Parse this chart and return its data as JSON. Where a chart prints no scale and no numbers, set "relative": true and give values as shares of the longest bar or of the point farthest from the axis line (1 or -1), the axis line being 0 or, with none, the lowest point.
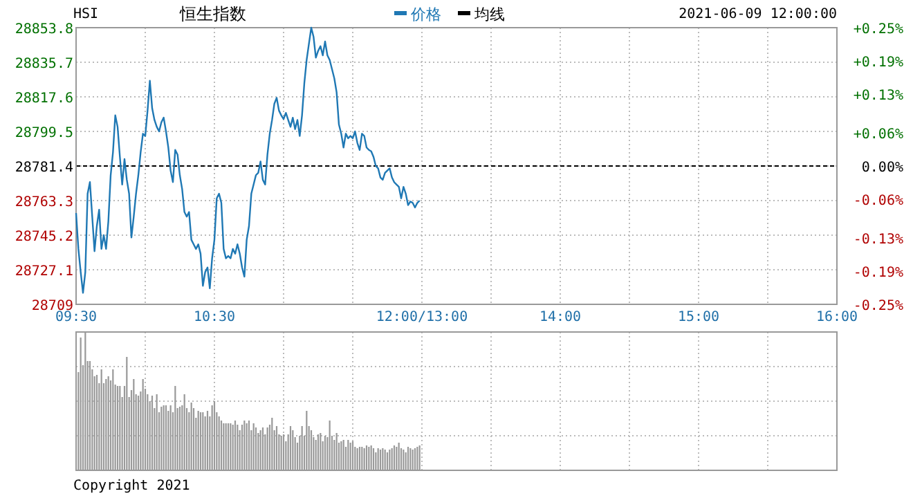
{
  "chart_data": [
    {
      "type": "line",
      "title": "HSI",
      "subtitle": "恒生指数",
      "annotations": [
        "2021-06-09 12:00:00"
      ],
      "categories": [
        "09:30",
        null,
        null,
        null,
        null,
        null,
        null,
        null,
        null,
        null,
        null,
        null,
        null,
        null,
        null,
        null,
        null,
        null,
        null,
        null,
        null,
        null,
        null,
        null,
        null,
        null,
        null,
        null,
        null,
        null,
        null,
        null,
        null,
        null,
        null,
        null,
        null,
        null,
        null,
        null,
        null,
        null,
        null,
        null,
        null,
        null,
        null,
        null,
        null,
        null,
        null,
        null,
        null,
        null,
        null,
        null,
        null,
        null,
        null,
        null,
        "10:30",
        null,
        null,
        null,
        null,
        null,
        null,
        null,
        null,
        null,
        null,
        null,
        null,
        null,
        null,
        null,
        null,
        null,
        null,
        null,
        null,
        null,
        null,
        null,
        null,
        null,
        null,
        null,
        null,
        null,
        null,
        null,
        null,
        null,
        null,
        null,
        null,
        null,
        null,
        null,
        null,
        null,
        null,
        null,
        null,
        null,
        null,
        null,
        null,
        null,
        null,
        null,
        null,
        null,
        null,
        null,
        null,
        null,
        null,
        null,
        null,
        null,
        null,
        null,
        null,
        null,
        null,
        null,
        null,
        null,
        null,
        null,
        null,
        null,
        null,
        null,
        null,
        null,
        null,
        null,
        null,
        null,
        null,
        null,
        null,
        null,
        null,
        null,
        null,
        null,
        "12:00/13:00",
        null,
        null,
        null,
        null,
        null,
        null,
        null,
        null,
        null,
        null,
        null,
        null,
        null,
        null,
        null,
        null,
        null,
        null,
        null,
        null,
        null,
        null,
        null,
        null,
        null,
        null,
        null,
        null,
        null,
        null,
        null,
        null,
        null,
        null,
        null,
        null,
        null,
        null,
        null,
        null,
        null,
        null,
        null,
        null,
        null,
        null,
        null,
        null,
        null,
        null,
        null,
        null,
        null,
        null,
        null,
        null,
        null,
        null,
        null,
        "14:00",
        null,
        null,
        null,
        null,
        null,
        null,
        null,
        null,
        null,
        null,
        null,
        null,
        null,
        null,
        null,
        null,
        null,
        null,
        null,
        null,
        null,
        null,
        null,
        null,
        null,
        null,
        null,
        null,
        null,
        null,
        null,
        null,
        null,
        null,
        null,
        null,
        null,
        null,
        null,
        null,
        null,
        null,
        null,
        null,
        null,
        null,
        null,
        null,
        null,
        null,
        null,
        null,
        null,
        null,
        null,
        null,
        null,
        null,
        null,
        "15:00",
        null,
        null,
        null,
        null,
        null,
        null,
        null,
        null,
        null,
        null,
        null,
        null,
        null,
        null,
        null,
        null,
        null,
        null,
        null,
        null,
        null,
        null,
        null,
        null,
        null,
        null,
        null,
        null,
        null,
        null,
        null,
        null,
        null,
        null,
        null,
        null,
        null,
        null,
        null,
        null,
        null,
        null,
        null,
        null,
        null,
        null,
        null,
        null,
        null,
        null,
        null,
        null,
        null,
        null,
        null,
        null,
        null,
        null,
        null,
        "16:00"
      ],
      "ylim": [
        28709.0,
        28853.8
      ],
      "yticks": [
        28709.0,
        28727.1,
        28745.2,
        28763.3,
        28781.4,
        28799.5,
        28817.6,
        28835.7,
        28853.8
      ],
      "y2lim": [
        -0.25,
        0.25
      ],
      "y2ticks": [
        {
          "value": -0.25,
          "label": "-0.25%"
        },
        {
          "value": -0.19,
          "label": "-0.19%"
        },
        {
          "value": -0.13,
          "label": "-0.13%"
        },
        {
          "value": -0.06,
          "label": "-0.06%"
        },
        {
          "value": 0,
          "label": "0.00%"
        },
        {
          "value": 0.06,
          "label": "+0.06%"
        },
        {
          "value": 0.13,
          "label": "+0.13%"
        },
        {
          "value": 0.19,
          "label": "+0.19%"
        },
        {
          "value": 0.25,
          "label": "+0.25%"
        }
      ],
      "ref_lines": [
        {
          "axis": "y",
          "value": 28781.4,
          "color": "#000000",
          "line_style": "dashed"
        }
      ],
      "grid": true,
      "legend": "top",
      "marker": "none",
      "series": [
        {
          "name": "价格",
          "color": "#1f78b4",
          "values": [
            28756.8,
            28738.0,
            28725.9,
            28715.0,
            28725.9,
            28766.9,
            28773.0,
            28754.9,
            28736.8,
            28750.0,
            28758.5,
            28738.0,
            28745.2,
            28738.0,
            28752.4,
            28776.6,
            28788.6,
            28807.9,
            28801.9,
            28786.2,
            28771.7,
            28785.0,
            28774.2,
            28766.9,
            28744.0,
            28754.9,
            28766.9,
            28776.6,
            28788.6,
            28798.3,
            28797.1,
            28810.4,
            28826.0,
            28811.6,
            28805.5,
            28801.9,
            28799.5,
            28804.3,
            28806.7,
            28799.5,
            28791.1,
            28779.0,
            28773.0,
            28789.8,
            28787.4,
            28776.6,
            28769.3,
            28757.3,
            28754.9,
            28757.3,
            28742.8,
            28740.4,
            28738.0,
            28740.4,
            28735.5,
            28718.7,
            28725.9,
            28728.3,
            28717.4,
            28733.1,
            28742.8,
            28764.5,
            28766.9,
            28762.1,
            28738.0,
            28733.1,
            28734.3,
            28733.1,
            28738.0,
            28735.5,
            28740.4,
            28735.5,
            28728.3,
            28723.5,
            28742.8,
            28750.0,
            28766.9,
            28771.7,
            28776.6,
            28777.8,
            28783.8,
            28774.2,
            28771.7,
            28787.4,
            28798.3,
            28805.5,
            28814.0,
            28817.1,
            28810.4,
            28807.9,
            28806.0,
            28809.2,
            28805.5,
            28801.9,
            28806.7,
            28800.7,
            28805.5,
            28797.1,
            28807.9,
            28824.8,
            28836.9,
            28845.4,
            28853.8,
            28849.0,
            28838.1,
            28841.7,
            28844.1,
            28839.3,
            28846.6,
            28839.3,
            28836.9,
            28832.1,
            28827.3,
            28820.0,
            28803.1,
            28798.3,
            28791.1,
            28798.3,
            28795.9,
            28797.1,
            28795.9,
            28799.5,
            28793.5,
            28789.8,
            28798.3,
            28797.1,
            28791.1,
            28789.8,
            28789.1,
            28786.2,
            28781.4,
            28780.2,
            28775.4,
            28774.2,
            28777.8,
            28779.0,
            28780.2,
            28775.4,
            28772.9,
            28771.7,
            28770.5,
            28764.5,
            28770.5,
            28766.9,
            28760.9,
            28762.8,
            28762.1,
            28759.7,
            28762.1,
            28763.3,
            null,
            null,
            null,
            null,
            null,
            null,
            null,
            null,
            null,
            null,
            null,
            null,
            null,
            null,
            null,
            null,
            null,
            null,
            null,
            null,
            null,
            null,
            null,
            null,
            null,
            null,
            null,
            null,
            null,
            null,
            null,
            null,
            null,
            null,
            null,
            null,
            null,
            null,
            null,
            null,
            null,
            null,
            null,
            null,
            null,
            null,
            null,
            null,
            null,
            null,
            null,
            null,
            null,
            null,
            null,
            null,
            null,
            null,
            null,
            null,
            null,
            null,
            null,
            null,
            null,
            null,
            null,
            null,
            null,
            null,
            null,
            null,
            null,
            null,
            null,
            null,
            null,
            null,
            null,
            null,
            null,
            null,
            null,
            null,
            null,
            null,
            null,
            null,
            null,
            null,
            null,
            null,
            null,
            null,
            null,
            null,
            null,
            null,
            null,
            null,
            null,
            null,
            null,
            null,
            null,
            null,
            null,
            null,
            null,
            null,
            null,
            null,
            null,
            null,
            null,
            null,
            null,
            null,
            null,
            null,
            null,
            null,
            null,
            null,
            null,
            null,
            null,
            null,
            null,
            null,
            null,
            null,
            null,
            null,
            null,
            null,
            null,
            null,
            null,
            null,
            null,
            null,
            null,
            null,
            null,
            null,
            null,
            null,
            null,
            null,
            null,
            null,
            null,
            null,
            null,
            null,
            null,
            null,
            null,
            null,
            null,
            null,
            null,
            null,
            null,
            null,
            null,
            null,
            null,
            null,
            null,
            null,
            null,
            null,
            null,
            null,
            null,
            null,
            null,
            null,
            null
          ]
        },
        {
          "name": "均线",
          "color": "#000000",
          "values": [
            null,
            null,
            null,
            null,
            null,
            null,
            null,
            null,
            null,
            null,
            null,
            null,
            null,
            null,
            null,
            null,
            null,
            null,
            null,
            null,
            null,
            null,
            null,
            null,
            null,
            null,
            null,
            null,
            null,
            null,
            null,
            null,
            null,
            null,
            null,
            null,
            null,
            null,
            null,
            null,
            null,
            null,
            null,
            null,
            null,
            null,
            null,
            null,
            null,
            null,
            null,
            null,
            null,
            null,
            null,
            null,
            null,
            null,
            null,
            null,
            null,
            null,
            null,
            null,
            null,
            null,
            null,
            null,
            null,
            null,
            null,
            null,
            null,
            null,
            null,
            null,
            null,
            null,
            null,
            null,
            null,
            null,
            null,
            null,
            null,
            null,
            null,
            null,
            null,
            null,
            null,
            null,
            null,
            null,
            null,
            null,
            null,
            null,
            null,
            null,
            null,
            null,
            null,
            null,
            null,
            null,
            null,
            null,
            null,
            null,
            null,
            null,
            null,
            null,
            null,
            null,
            null,
            null,
            null,
            null,
            null,
            null,
            null,
            null,
            null,
            null,
            null,
            null,
            null,
            null,
            null,
            null,
            null,
            null,
            null,
            null,
            null,
            null,
            null,
            null,
            null,
            null,
            null,
            null,
            null,
            null,
            null,
            null,
            null,
            null,
            null,
            null,
            null,
            null,
            null,
            null,
            null,
            null,
            null,
            null,
            null,
            null,
            null,
            null,
            null,
            null,
            null,
            null,
            null,
            null,
            null,
            null,
            null,
            null,
            null,
            null,
            null,
            null,
            null,
            null,
            null,
            null,
            null,
            null,
            null,
            null,
            null,
            null,
            null,
            null,
            null,
            null,
            null,
            null,
            null,
            null,
            null,
            null,
            null,
            null,
            null,
            null,
            null,
            null,
            null,
            null,
            null,
            null,
            null,
            null,
            null,
            null,
            null,
            null,
            null,
            null,
            null,
            null,
            null,
            null,
            null,
            null,
            null,
            null,
            null,
            null,
            null,
            null,
            null,
            null,
            null,
            null,
            null,
            null,
            null,
            null,
            null,
            null,
            null,
            null,
            null,
            null,
            null,
            null,
            null,
            null,
            null,
            null,
            null,
            null,
            null,
            null,
            null,
            null,
            null,
            null,
            null,
            null,
            null,
            null,
            null,
            null,
            null,
            null,
            null,
            null,
            null,
            null,
            null,
            null,
            null,
            null,
            null,
            null,
            null,
            null,
            null,
            null,
            null,
            null,
            null,
            null,
            null,
            null,
            null,
            null,
            null,
            null,
            null,
            null,
            null,
            null,
            null,
            null,
            null,
            null,
            null,
            null,
            null,
            null,
            null,
            null,
            null,
            null,
            null,
            null,
            null,
            null,
            null,
            null,
            null,
            null,
            null,
            null,
            null,
            null,
            null,
            null,
            null,
            null,
            null,
            null,
            null,
            null,
            null,
            null,
            null,
            null,
            null,
            null,
            null
          ]
        }
      ]
    },
    {
      "type": "bar",
      "relative": true,
      "color": "#999999",
      "grid": true,
      "tick_labels": false,
      "annotations": [
        "Copyright 2021"
      ],
      "categories": [
        null,
        null,
        null,
        null,
        null,
        null,
        null,
        null,
        null,
        null,
        null,
        null,
        null,
        null,
        null,
        null,
        null,
        null,
        null,
        null,
        null,
        null,
        null,
        null,
        null,
        null,
        null,
        null,
        null,
        null,
        null,
        null,
        null,
        null,
        null,
        null,
        null,
        null,
        null,
        null,
        null,
        null,
        null,
        null,
        null,
        null,
        null,
        null,
        null,
        null,
        null,
        null,
        null,
        null,
        null,
        null,
        null,
        null,
        null,
        null,
        null,
        null,
        null,
        null,
        null,
        null,
        null,
        null,
        null,
        null,
        null,
        null,
        null,
        null,
        null,
        null,
        null,
        null,
        null,
        null,
        null,
        null,
        null,
        null,
        null,
        null,
        null,
        null,
        null,
        null,
        null,
        null,
        null,
        null,
        null,
        null,
        null,
        null,
        null,
        null,
        null,
        null,
        null,
        null,
        null,
        null,
        null,
        null,
        null,
        null,
        null,
        null,
        null,
        null,
        null,
        null,
        null,
        null,
        null,
        null,
        null,
        null,
        null,
        null,
        null,
        null,
        null,
        null,
        null,
        null,
        null,
        null,
        null,
        null,
        null,
        null,
        null,
        null,
        null,
        null,
        null,
        null,
        null,
        null,
        null,
        null,
        null,
        null,
        null,
        null,
        null,
        null,
        null,
        null,
        null,
        null,
        null,
        null,
        null,
        null,
        null,
        null,
        null,
        null,
        null,
        null,
        null,
        null,
        null,
        null,
        null,
        null,
        null,
        null,
        null,
        null,
        null,
        null,
        null,
        null,
        null,
        null,
        null,
        null,
        null,
        null,
        null,
        null,
        null,
        null,
        null,
        null,
        null,
        null,
        null,
        null,
        null,
        null,
        null,
        null,
        null,
        null,
        null,
        null,
        null,
        null,
        null,
        null,
        null,
        null,
        null,
        null,
        null,
        null,
        null,
        null,
        null,
        null,
        null,
        null,
        null,
        null,
        null,
        null,
        null,
        null,
        null,
        null,
        null,
        null,
        null,
        null,
        null,
        null,
        null,
        null,
        null,
        null,
        null,
        null,
        null,
        null,
        null,
        null,
        null,
        null,
        null,
        null,
        null,
        null,
        null,
        null,
        null,
        null,
        null,
        null,
        null,
        null,
        null,
        null,
        null,
        null,
        null,
        null,
        null,
        null,
        null,
        null,
        null,
        null,
        null,
        null,
        null,
        null,
        null,
        null,
        null,
        null,
        null,
        null,
        null,
        null,
        null,
        null,
        null,
        null,
        null,
        null,
        null,
        null,
        null,
        null,
        null,
        null,
        null,
        null,
        null,
        null,
        null,
        null,
        null,
        null,
        null,
        null,
        null,
        null,
        null,
        null,
        null,
        null,
        null,
        null,
        null,
        null,
        null,
        null,
        null,
        null,
        null,
        null,
        null,
        null,
        null,
        null,
        null,
        null,
        null,
        null,
        null,
        null,
        null
      ],
      "values": [
        null,
        0.71,
        0.96,
        0.76,
        1,
        0.79,
        0.79,
        0.73,
        0.68,
        0.69,
        0.63,
        0.73,
        0.63,
        0.66,
        0.68,
        0.65,
        0.73,
        0.62,
        0.61,
        0.61,
        0.53,
        0.61,
        0.82,
        0.53,
        0.58,
        0.66,
        0.55,
        0.54,
        0.57,
        0.66,
        0.59,
        0.55,
        0.5,
        0.54,
        0.45,
        0.55,
        0.42,
        0.46,
        0.47,
        0.47,
        0.43,
        0.47,
        0.42,
        0.61,
        0.45,
        0.46,
        0.47,
        0.55,
        0.45,
        0.42,
        0.49,
        0.45,
        0.38,
        0.43,
        0.42,
        0.42,
        0.39,
        0.43,
        0.39,
        0.47,
        0.5,
        0.42,
        0.39,
        0.36,
        0.34,
        0.34,
        0.34,
        0.34,
        0.33,
        0.36,
        0.33,
        0.29,
        0.33,
        0.36,
        0.34,
        0.36,
        0.29,
        0.34,
        0.31,
        0.27,
        0.29,
        0.31,
        0.26,
        0.31,
        0.33,
        0.38,
        0.29,
        0.32,
        0.26,
        0.25,
        0.26,
        0.21,
        0.26,
        0.32,
        0.29,
        0.24,
        0.2,
        0.25,
        0.32,
        0.25,
        0.43,
        0.32,
        0.29,
        0.24,
        0.22,
        0.26,
        0.27,
        0.21,
        0.25,
        0.24,
        0.36,
        0.25,
        0.22,
        0.27,
        0.2,
        0.21,
        0.22,
        0.17,
        0.22,
        0.2,
        0.21,
        0.17,
        0.16,
        0.17,
        0.17,
        0.16,
        0.18,
        0.17,
        0.18,
        0.16,
        0.13,
        0.16,
        0.15,
        0.16,
        0.15,
        0.13,
        0.15,
        0.16,
        0.18,
        0.17,
        0.2,
        0.16,
        0.15,
        0.13,
        0.17,
        0.16,
        0.15,
        0.16,
        0.17,
        0.18,
        null,
        null,
        null,
        null,
        null,
        null,
        null,
        null,
        null,
        null,
        null,
        null,
        null,
        null,
        null,
        null,
        null,
        null,
        null,
        null,
        null,
        null,
        null,
        null,
        null,
        null,
        null,
        null,
        null,
        null,
        null,
        null,
        null,
        null,
        null,
        null,
        null,
        null,
        null,
        null,
        null,
        null,
        null,
        null,
        null,
        null,
        null,
        null,
        null,
        null,
        null,
        null,
        null,
        null,
        null,
        null,
        null,
        null,
        null,
        null,
        null,
        null,
        null,
        null,
        null,
        null,
        null,
        null,
        null,
        null,
        null,
        null,
        null,
        null,
        null,
        null,
        null,
        null,
        null,
        null,
        null,
        null,
        null,
        null,
        null,
        null,
        null,
        null,
        null,
        null,
        null,
        null,
        null,
        null,
        null,
        null,
        null,
        null,
        null,
        null,
        null,
        null,
        null,
        null,
        null,
        null,
        null,
        null,
        null,
        null,
        null,
        null,
        null,
        null,
        null,
        null,
        null,
        null,
        null,
        null,
        null,
        null,
        null,
        null,
        null,
        null,
        null,
        null,
        null,
        null,
        null,
        null,
        null,
        null,
        null,
        null,
        null,
        null,
        null,
        null,
        null,
        null,
        null,
        null,
        null,
        null,
        null,
        null,
        null,
        null,
        null,
        null,
        null,
        null,
        null,
        null,
        null,
        null,
        null,
        null,
        null,
        null,
        null,
        null,
        null,
        null,
        null,
        null,
        null,
        null,
        null,
        null,
        null,
        null,
        null,
        null,
        null,
        null,
        null,
        null,
        null
      ]
    }
  ]
}
